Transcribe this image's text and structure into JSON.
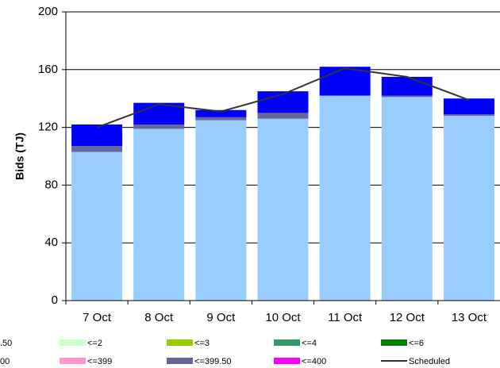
{
  "chart_data": {
    "type": "bar",
    "y_label": "Bids (TJ)",
    "categories": [
      "7 Oct",
      "8 Oct",
      "9 Oct",
      "10 Oct",
      "11 Oct",
      "12 Oct",
      "13 Oct"
    ],
    "series": [
      {
        "name": ".50",
        "color": "#99ccff",
        "values": [
          103,
          119,
          125,
          126,
          142,
          141,
          128
        ]
      },
      {
        "name": "<=2",
        "color": "#ccffcc",
        "values": [
          0,
          0,
          0,
          0,
          0,
          0,
          0
        ]
      },
      {
        "name": "<=3",
        "color": "#99cc00",
        "values": [
          0,
          0,
          0,
          0,
          0,
          0,
          0
        ]
      },
      {
        "name": "<=4",
        "color": "#339966",
        "values": [
          0,
          0,
          0,
          0,
          0,
          0,
          0
        ]
      },
      {
        "name": "<=6",
        "color": "#008000",
        "values": [
          0,
          0,
          0,
          0,
          0,
          0,
          0
        ]
      },
      {
        "name": "<=399",
        "color": "#ff99cc",
        "values": [
          0,
          0,
          0,
          0,
          0,
          0,
          0
        ]
      },
      {
        "name": "<=399.50",
        "color": "#666699",
        "values": [
          4,
          3,
          2,
          4,
          0,
          1,
          1
        ]
      },
      {
        "name": "<=400",
        "color": "#ff00ff",
        "values": [
          0,
          0,
          0,
          0,
          0,
          0,
          0
        ]
      },
      {
        "name": "00",
        "color": "#0000ff",
        "values": [
          15,
          15,
          5,
          15,
          20,
          13,
          11
        ]
      },
      {
        "name": "Scheduled",
        "type": "line",
        "color": "#333333",
        "values": [
          120,
          136,
          131,
          143,
          161,
          155,
          139
        ]
      }
    ],
    "ylim": [
      0,
      200
    ],
    "yticks": [
      0,
      40,
      80,
      120,
      160,
      200
    ],
    "grid": true
  }
}
